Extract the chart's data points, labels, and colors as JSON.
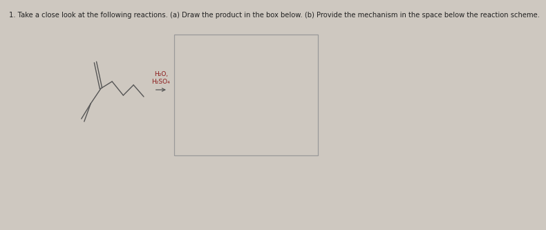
{
  "title_text": "1. Take a close look at the following reactions. (a) Draw the product in the box below. (b) Provide the mechanism in the space below the reaction scheme.",
  "title_fontsize": 7.2,
  "background_color": "#cec8c0",
  "reagents_line1": "H₂O,",
  "reagents_line2": "H₂SO₄",
  "reagent_color": "#8B1A1A",
  "molecule_color": "#555555",
  "text_color": "#222222",
  "box_edge_color": "#999999",
  "lw": 1.0
}
